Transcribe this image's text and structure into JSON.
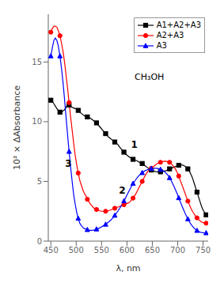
{
  "chart_data": {
    "type": "line",
    "xlabel": "λ, nm",
    "ylabel": "10² × ΔAbsorbance",
    "xlim": [
      445,
      760
    ],
    "ylim": [
      0,
      19
    ],
    "xticks": [
      450,
      500,
      550,
      600,
      650,
      700,
      750
    ],
    "yticks": [
      0,
      5,
      10,
      15
    ],
    "grid": false,
    "legend": "upper right",
    "annotations": [
      {
        "text": "1",
        "x": 608,
        "y": 7.8
      },
      {
        "text": "2",
        "x": 584,
        "y": 4.0
      },
      {
        "text": "3",
        "x": 478,
        "y": 6.2
      },
      {
        "text": "CH₃OH",
        "x": 615,
        "y": 13.5
      }
    ],
    "x": [
      450,
      453,
      456,
      459,
      462,
      465,
      468,
      471,
      474,
      477,
      480,
      483,
      486,
      489,
      492,
      495,
      498,
      501,
      504,
      507,
      510,
      513,
      516,
      519,
      522,
      525,
      528,
      531,
      534,
      537,
      540,
      543,
      546,
      549,
      552,
      555,
      558,
      561,
      564,
      567,
      570,
      573,
      576,
      579,
      582,
      585,
      588,
      591,
      594,
      597,
      600,
      603,
      606,
      609,
      612,
      615,
      618,
      621,
      624,
      627,
      630,
      633,
      636,
      639,
      642,
      645,
      648,
      651,
      654,
      657,
      660,
      663,
      666,
      669,
      672,
      675,
      678,
      681,
      684,
      687,
      690,
      693,
      696,
      699,
      702,
      705,
      708,
      711,
      714,
      717,
      720,
      723,
      726,
      729,
      732,
      735,
      738,
      741,
      744,
      747,
      750,
      753,
      756
    ],
    "series": [
      {
        "name": "A1+A2+A3",
        "color": "black",
        "marker": "square",
        "values": [
          11.8,
          11.7,
          11.5,
          11.3,
          11.1,
          10.9,
          10.8,
          10.8,
          10.9,
          11.0,
          11.2,
          11.4,
          11.4,
          11.3,
          11.2,
          11.15,
          11.1,
          11.1,
          10.95,
          10.8,
          10.7,
          10.6,
          10.5,
          10.45,
          10.4,
          10.35,
          10.3,
          10.2,
          10.1,
          10.0,
          9.9,
          9.75,
          9.6,
          9.45,
          9.3,
          9.15,
          9.0,
          8.85,
          8.7,
          8.6,
          8.5,
          8.4,
          8.3,
          8.2,
          8.1,
          7.9,
          7.75,
          7.6,
          7.45,
          7.3,
          7.2,
          7.1,
          7.0,
          6.9,
          6.85,
          6.8,
          6.75,
          6.7,
          6.6,
          6.55,
          6.5,
          6.4,
          6.3,
          6.2,
          6.1,
          6.0,
          5.95,
          5.9,
          5.85,
          5.82,
          5.8,
          5.8,
          5.8,
          5.82,
          5.85,
          5.88,
          5.92,
          5.98,
          6.05,
          6.1,
          6.15,
          6.2,
          6.25,
          6.3,
          6.35,
          6.4,
          6.38,
          6.35,
          6.28,
          6.18,
          6.05,
          5.85,
          5.6,
          5.3,
          4.9,
          4.5,
          4.1,
          3.7,
          3.3,
          2.9,
          2.6,
          2.4,
          2.2
        ]
      },
      {
        "name": "A2+A3",
        "color": "red",
        "marker": "circle",
        "values": [
          17.5,
          17.8,
          18.0,
          18.0,
          17.9,
          17.6,
          17.2,
          16.6,
          15.9,
          15.0,
          13.9,
          12.8,
          11.6,
          10.4,
          9.3,
          8.2,
          7.2,
          6.4,
          5.7,
          5.1,
          4.7,
          4.3,
          4.0,
          3.8,
          3.5,
          3.3,
          3.1,
          2.95,
          2.8,
          2.7,
          2.65,
          2.6,
          2.55,
          2.5,
          2.5,
          2.5,
          2.5,
          2.52,
          2.55,
          2.6,
          2.65,
          2.7,
          2.75,
          2.8,
          2.85,
          2.9,
          2.95,
          3.0,
          3.05,
          3.1,
          3.15,
          3.2,
          3.3,
          3.45,
          3.6,
          3.8,
          4.0,
          4.25,
          4.5,
          4.75,
          5.0,
          5.25,
          5.5,
          5.7,
          5.88,
          6.0,
          6.1,
          6.2,
          6.3,
          6.4,
          6.5,
          6.55,
          6.6,
          6.65,
          6.68,
          6.7,
          6.68,
          6.65,
          6.6,
          6.5,
          6.35,
          6.2,
          6.0,
          5.75,
          5.45,
          5.1,
          4.75,
          4.4,
          4.05,
          3.7,
          3.35,
          3.05,
          2.75,
          2.5,
          2.3,
          2.1,
          1.95,
          1.8,
          1.7,
          1.6,
          1.55,
          1.5,
          1.5
        ]
      },
      {
        "name": "A3",
        "color": "blue",
        "marker": "triangle",
        "values": [
          15.5,
          16.2,
          16.8,
          17.0,
          16.8,
          16.3,
          15.5,
          14.5,
          13.3,
          11.9,
          10.4,
          8.9,
          7.5,
          6.2,
          5.0,
          3.9,
          3.1,
          2.4,
          1.9,
          1.5,
          1.3,
          1.15,
          1.05,
          1.0,
          0.95,
          0.92,
          0.9,
          0.9,
          0.92,
          0.95,
          1.0,
          1.05,
          1.1,
          1.18,
          1.25,
          1.32,
          1.4,
          1.5,
          1.6,
          1.72,
          1.85,
          2.0,
          2.15,
          2.32,
          2.5,
          2.7,
          2.9,
          3.1,
          3.35,
          3.6,
          3.85,
          4.1,
          4.35,
          4.6,
          4.82,
          5.0,
          5.18,
          5.35,
          5.5,
          5.62,
          5.72,
          5.82,
          5.9,
          5.96,
          6.0,
          6.05,
          6.08,
          6.1,
          6.1,
          6.1,
          6.08,
          6.05,
          6.0,
          5.95,
          5.88,
          5.78,
          5.65,
          5.5,
          5.3,
          5.08,
          4.82,
          4.55,
          4.25,
          3.95,
          3.62,
          3.3,
          2.98,
          2.68,
          2.38,
          2.1,
          1.85,
          1.62,
          1.42,
          1.25,
          1.1,
          0.98,
          0.88,
          0.8,
          0.75,
          0.72,
          0.7,
          0.68,
          0.68
        ]
      }
    ]
  }
}
